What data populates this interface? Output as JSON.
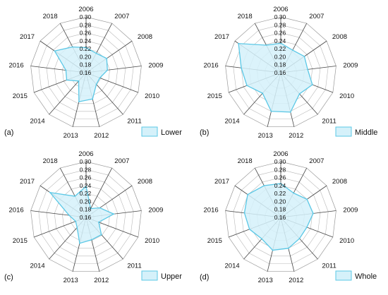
{
  "chart_data": {
    "type": "radar",
    "axes": [
      "2006",
      "2007",
      "2008",
      "2009",
      "2010",
      "2011",
      "2012",
      "2013",
      "2014",
      "2015",
      "2016",
      "2017",
      "2018"
    ],
    "rlim": [
      0.16,
      0.3
    ],
    "ticks": [
      "0.16",
      "0.18",
      "0.20",
      "0.22",
      "0.24",
      "0.26",
      "0.28",
      "0.30"
    ],
    "fill_color": "#d5f1fa",
    "line_color": "#5bc8e6",
    "legend_position": "bottom-right",
    "panels": [
      {
        "label": "(a)",
        "series_name": "Lower",
        "values": [
          0.223,
          0.215,
          0.223,
          0.214,
          0.197,
          0.199,
          0.228,
          0.235,
          0.188,
          0.212,
          0.211,
          0.256,
          0.233
        ]
      },
      {
        "label": "(b)",
        "series_name": "Middle",
        "values": [
          0.234,
          0.224,
          0.232,
          0.228,
          0.245,
          0.231,
          0.262,
          0.26,
          0.229,
          0.251,
          0.26,
          0.289,
          0.238
        ]
      },
      {
        "label": "(c)",
        "series_name": "Upper",
        "values": [
          0.238,
          0.185,
          0.202,
          0.23,
          0.194,
          0.218,
          0.218,
          0.227,
          0.194,
          0.188,
          0.203,
          0.27,
          0.22
        ]
      },
      {
        "label": "(d)",
        "series_name": "Whole",
        "values": [
          0.245,
          0.229,
          0.24,
          0.242,
          0.23,
          0.231,
          0.24,
          0.245,
          0.232,
          0.244,
          0.252,
          0.261,
          0.25
        ]
      }
    ]
  }
}
